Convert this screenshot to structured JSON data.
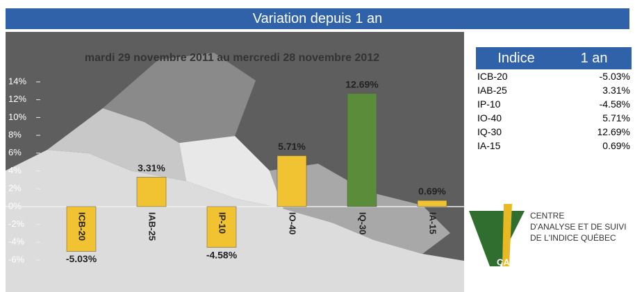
{
  "header": {
    "title": "Variation depuis 1 an"
  },
  "chart_data": {
    "type": "bar",
    "subtitle": "mardi 29 novembre 2011 au mercredi 28 novembre 2012",
    "categories": [
      "ICB-20",
      "IAB-25",
      "IP-10",
      "IO-40",
      "IQ-30",
      "IA-15"
    ],
    "values": [
      -5.03,
      3.31,
      -4.58,
      5.71,
      12.69,
      0.69
    ],
    "value_labels": [
      "-5.03%",
      "3.31%",
      "-4.58%",
      "5.71%",
      "12.69%",
      "0.69%"
    ],
    "colors": [
      "#f1c232",
      "#f1c232",
      "#f1c232",
      "#f1c232",
      "#5b8c3a",
      "#f1c232"
    ],
    "ylim": [
      -6,
      14
    ],
    "yticks": [
      {
        "value": -6,
        "label": "-6%"
      },
      {
        "value": -4,
        "label": "-4%"
      },
      {
        "value": -2,
        "label": "-2%"
      },
      {
        "value": 0,
        "label": "0%"
      },
      {
        "value": 2,
        "label": "2%"
      },
      {
        "value": 4,
        "label": "4%"
      },
      {
        "value": 6,
        "label": "6%"
      },
      {
        "value": 8,
        "label": "8%"
      },
      {
        "value": 10,
        "label": "10%"
      },
      {
        "value": 12,
        "label": "12%"
      },
      {
        "value": 14,
        "label": "14%"
      }
    ],
    "grid": false
  },
  "table": {
    "columns": [
      "Indice",
      "1 an"
    ],
    "rows": [
      [
        "ICB-20",
        "-5.03%"
      ],
      [
        "IAB-25",
        "3.31%"
      ],
      [
        "IP-10",
        "-4.58%"
      ],
      [
        "IO-40",
        "5.71%"
      ],
      [
        "IQ-30",
        "12.69%"
      ],
      [
        "IA-15",
        "0.69%"
      ]
    ]
  },
  "logo": {
    "lines": [
      "CENTRE",
      "D'ANALYSE ET DE SUIVI",
      "DE L'INDICE QUÉBEC"
    ],
    "mark": "CASIQ"
  }
}
